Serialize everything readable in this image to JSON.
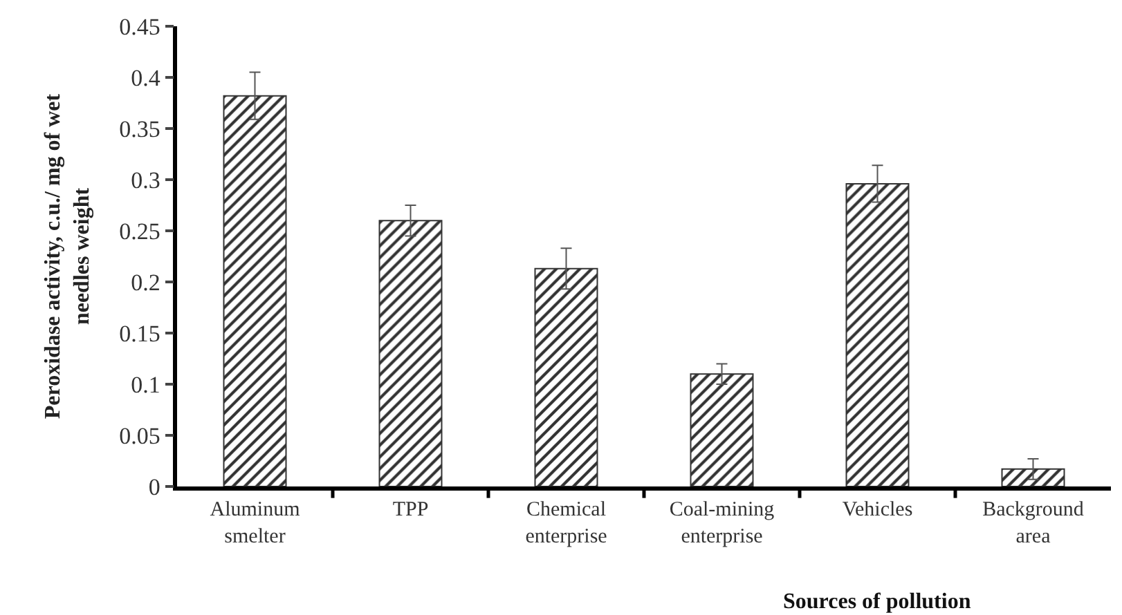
{
  "chart_data": {
    "type": "bar",
    "xlabel": "Sources of pollution",
    "ylabel": "Peroxidase activity, c.u./ mg of wet needles weight",
    "categories": [
      "Aluminum smelter",
      "TPP",
      "Chemical enterprise",
      "Coal-mining enterprise",
      "Vehicles",
      "Background area"
    ],
    "values": [
      0.382,
      0.26,
      0.213,
      0.11,
      0.296,
      0.017
    ],
    "errors": [
      0.023,
      0.015,
      0.02,
      0.01,
      0.018,
      0.01
    ],
    "color": "#333333",
    "ylim": [
      0,
      0.45
    ],
    "yticks": [
      0,
      0.05,
      0.1,
      0.15,
      0.2,
      0.25,
      0.3,
      0.35,
      0.4,
      0.45
    ],
    "grid": false
  }
}
